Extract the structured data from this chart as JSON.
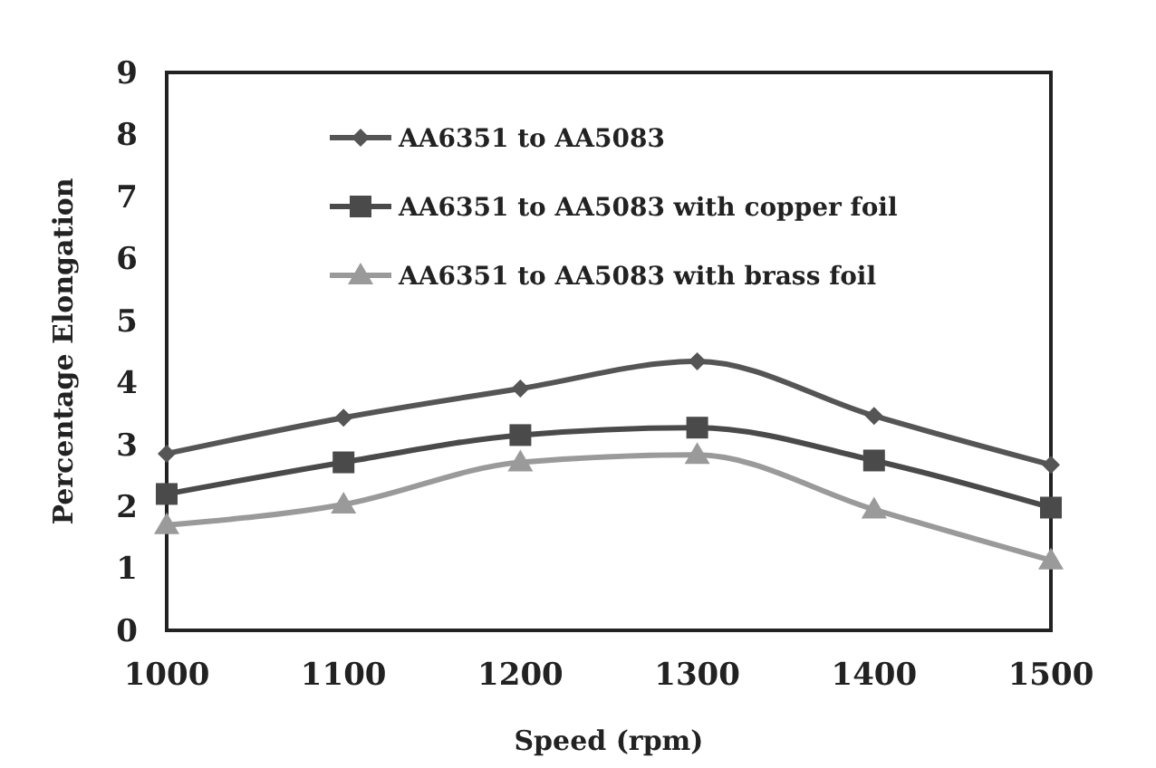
{
  "chart_data": {
    "type": "line",
    "xlabel": "Speed (rpm)",
    "ylabel": "Percentage Elongation",
    "x": [
      1000,
      1100,
      1200,
      1300,
      1400,
      1500
    ],
    "xlim": [
      1000,
      1500
    ],
    "xticks": [
      1000,
      1100,
      1200,
      1300,
      1400,
      1500
    ],
    "ylim": [
      0,
      9
    ],
    "yticks": [
      0,
      1,
      2,
      3,
      4,
      5,
      6,
      7,
      8,
      9
    ],
    "grid": false,
    "legend": "top left",
    "series": [
      {
        "name": "AA6351 to AA5083",
        "color": "#555555",
        "marker": "diamond",
        "values": [
          2.85,
          3.43,
          3.9,
          4.34,
          3.46,
          2.67
        ]
      },
      {
        "name": "AA6351 to AA5083 with copper foil",
        "color": "#4a4a4a",
        "marker": "square",
        "values": [
          2.2,
          2.71,
          3.15,
          3.27,
          2.74,
          1.98
        ]
      },
      {
        "name": "AA6351 to AA5083 with brass foil",
        "color": "#9a9a9a",
        "marker": "triangle",
        "values": [
          1.7,
          2.03,
          2.71,
          2.83,
          1.95,
          1.13
        ]
      }
    ]
  }
}
